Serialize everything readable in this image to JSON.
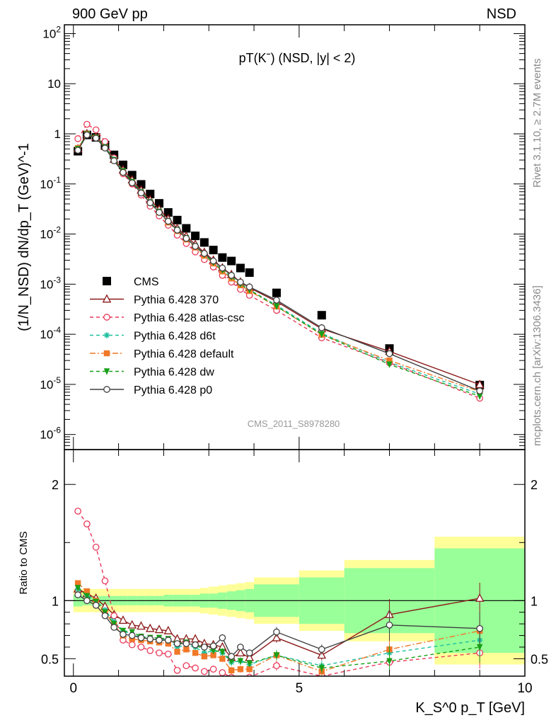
{
  "header": {
    "left": "900 GeV pp",
    "right": "NSD",
    "side_top": "Rivet 3.1.10, ≥ 2.7M events",
    "side_bottom": "mcplots.cern.ch [arXiv:1306.3436]"
  },
  "chart_data": [
    {
      "type": "line",
      "title": "pT(Kˉ) (NSD, |y| < 2)",
      "watermark": "CMS_2011_S8978280",
      "ylabel": "(1/N_NSD) dN/dp_T (GeV)^-1",
      "yscale": "log",
      "ylim": [
        5e-07,
        150
      ],
      "xlim": [
        -0.2,
        10
      ],
      "ytick_labels": [
        "10^-6",
        "10^-5",
        "10^-4",
        "10^-3",
        "10^-2",
        "10^-1",
        "1",
        "10",
        "10^2"
      ],
      "legend_position": "middle-left",
      "x": [
        0.1,
        0.3,
        0.5,
        0.7,
        0.9,
        1.1,
        1.3,
        1.5,
        1.7,
        1.9,
        2.1,
        2.3,
        2.5,
        2.7,
        2.9,
        3.1,
        3.3,
        3.5,
        3.7,
        3.9,
        4.5,
        5.5,
        7.0,
        9.0
      ],
      "series": [
        {
          "name": "CMS",
          "color": "#000000",
          "marker": "square",
          "values": [
            0.45,
            0.95,
            0.85,
            0.6,
            0.38,
            0.24,
            0.15,
            0.098,
            0.063,
            0.041,
            0.027,
            0.019,
            0.013,
            0.0092,
            0.0068,
            0.0048,
            0.0034,
            0.0029,
            0.0021,
            0.0017,
            0.00067,
            0.00024,
            5.2e-05,
            9.7e-06
          ]
        },
        {
          "name": "Pythia 6.428 370",
          "color": "#8b1a1a",
          "marker": "open-triangle",
          "dash": "solid",
          "values": [
            0.5,
            1.0,
            0.86,
            0.56,
            0.31,
            0.19,
            0.12,
            0.075,
            0.048,
            0.031,
            0.02,
            0.013,
            0.009,
            0.0062,
            0.0043,
            0.003,
            0.0021,
            0.00155,
            0.0011,
            0.00085,
            0.00045,
            0.000128,
            4.55e-05,
            9.9e-06
          ]
        },
        {
          "name": "Pythia 6.428 atlas-csc",
          "color": "#e8395a",
          "marker": "open-circle",
          "dash": "dashed",
          "values": [
            0.8,
            1.55,
            1.2,
            0.7,
            0.33,
            0.16,
            0.1,
            0.06,
            0.036,
            0.023,
            0.015,
            0.0095,
            0.0065,
            0.0044,
            0.0031,
            0.0022,
            0.0015,
            0.0011,
            0.00079,
            0.0006,
            0.0003,
            8.5e-05,
            2.7e-05,
            5.3e-06
          ]
        },
        {
          "name": "Pythia 6.428 d6t",
          "color": "#20c0a0",
          "marker": "star",
          "dash": "dashed",
          "values": [
            0.5,
            1.0,
            0.85,
            0.55,
            0.31,
            0.18,
            0.11,
            0.07,
            0.044,
            0.028,
            0.018,
            0.012,
            0.0082,
            0.0057,
            0.0039,
            0.0027,
            0.0019,
            0.0014,
            0.001,
            0.00077,
            0.00038,
            0.000105,
            2.75e-05,
            6.4e-06
          ]
        },
        {
          "name": "Pythia 6.428 default",
          "color": "#f07828",
          "marker": "square",
          "dash": "dashdot",
          "values": [
            0.52,
            1.0,
            0.85,
            0.54,
            0.3,
            0.17,
            0.105,
            0.066,
            0.042,
            0.027,
            0.017,
            0.0115,
            0.0078,
            0.0054,
            0.0037,
            0.0026,
            0.0018,
            0.0013,
            0.00095,
            0.00073,
            0.00036,
            9.8e-05,
            3e-05,
            7.2e-06
          ]
        },
        {
          "name": "Pythia 6.428 dw",
          "color": "#18a018",
          "marker": "triangle-down",
          "dash": "dashed",
          "values": [
            0.5,
            0.98,
            0.84,
            0.54,
            0.3,
            0.18,
            0.11,
            0.068,
            0.043,
            0.028,
            0.018,
            0.0122,
            0.0083,
            0.0057,
            0.0039,
            0.0027,
            0.0019,
            0.0014,
            0.001,
            0.00077,
            0.00036,
            0.0001,
            2.5e-05,
            5.8e-06
          ]
        },
        {
          "name": "Pythia 6.428 p0",
          "color": "#404040",
          "marker": "open-circle",
          "dash": "solid",
          "values": [
            0.47,
            0.95,
            0.82,
            0.52,
            0.29,
            0.17,
            0.105,
            0.066,
            0.042,
            0.027,
            0.018,
            0.012,
            0.0082,
            0.0057,
            0.0041,
            0.0029,
            0.0021,
            0.0015,
            0.0011,
            0.00088,
            0.00048,
            0.000135,
            4.1e-05,
            7.4e-06
          ]
        }
      ]
    },
    {
      "type": "line",
      "ylabel": "Ratio to CMS",
      "xlabel": "K_S^0 p_T [GeV]",
      "ylim": [
        0.35,
        2.3
      ],
      "xlim": [
        -0.2,
        10
      ],
      "xtick_labels": [
        "0",
        "5",
        "10"
      ],
      "ytick_labels": [
        "0.5",
        "1",
        "2"
      ],
      "band_edges": [
        0,
        0.2,
        0.4,
        0.6,
        0.8,
        1.0,
        1.2,
        1.4,
        1.6,
        1.8,
        2.0,
        2.2,
        2.4,
        2.6,
        2.8,
        3.0,
        3.2,
        3.4,
        3.6,
        3.8,
        4.0,
        5.0,
        6.0,
        8.0,
        10.0
      ],
      "band_inner": [
        0.05,
        0.04,
        0.04,
        0.04,
        0.04,
        0.04,
        0.04,
        0.04,
        0.04,
        0.04,
        0.05,
        0.05,
        0.05,
        0.05,
        0.06,
        0.06,
        0.07,
        0.08,
        0.09,
        0.1,
        0.14,
        0.2,
        0.28,
        0.45
      ],
      "band_outer": [
        0.1,
        0.1,
        0.1,
        0.1,
        0.1,
        0.1,
        0.1,
        0.1,
        0.1,
        0.1,
        0.1,
        0.1,
        0.1,
        0.1,
        0.11,
        0.12,
        0.13,
        0.14,
        0.15,
        0.16,
        0.2,
        0.26,
        0.35,
        0.55
      ],
      "series": [
        {
          "name": "Pythia 6.428 370",
          "values": [
            1.1,
            1.06,
            1.02,
            0.95,
            0.88,
            0.83,
            0.79,
            0.78,
            0.76,
            0.75,
            0.74,
            0.67,
            0.67,
            0.67,
            0.63,
            0.62,
            0.6,
            0.51,
            0.55,
            0.51,
            0.68,
            0.53,
            0.88,
            1.02
          ]
        },
        {
          "name": "Pythia 6.428 atlas-csc",
          "values": [
            1.77,
            1.66,
            1.46,
            1.17,
            0.87,
            0.66,
            0.62,
            0.6,
            0.57,
            0.55,
            0.54,
            0.4,
            0.44,
            0.42,
            0.39,
            0.41,
            0.38,
            0.34,
            0.32,
            0.34,
            0.44,
            0.35,
            0.47,
            0.55
          ]
        },
        {
          "name": "Pythia 6.428 d6t",
          "values": [
            1.1,
            1.05,
            1.0,
            0.92,
            0.82,
            0.74,
            0.71,
            0.69,
            0.68,
            0.67,
            0.66,
            0.6,
            0.62,
            0.6,
            0.55,
            0.57,
            0.55,
            0.47,
            0.48,
            0.45,
            0.53,
            0.44,
            0.55,
            0.66
          ]
        },
        {
          "name": "Pythia 6.428 default",
          "values": [
            1.15,
            1.08,
            1.0,
            0.9,
            0.79,
            0.7,
            0.67,
            0.66,
            0.65,
            0.64,
            0.63,
            0.56,
            0.58,
            0.55,
            0.52,
            0.53,
            0.5,
            0.4,
            0.41,
            0.41,
            0.53,
            0.39,
            0.58,
            0.74
          ]
        },
        {
          "name": "Pythia 6.428 dw",
          "values": [
            1.11,
            1.04,
            0.99,
            0.9,
            0.8,
            0.74,
            0.73,
            0.69,
            0.68,
            0.68,
            0.67,
            0.63,
            0.64,
            0.61,
            0.59,
            0.57,
            0.56,
            0.48,
            0.48,
            0.46,
            0.53,
            0.42,
            0.48,
            0.6
          ]
        },
        {
          "name": "Pythia 6.428 p0",
          "values": [
            1.05,
            1.0,
            0.96,
            0.87,
            0.77,
            0.71,
            0.7,
            0.68,
            0.67,
            0.66,
            0.66,
            0.63,
            0.63,
            0.62,
            0.6,
            0.61,
            0.68,
            0.52,
            0.6,
            0.55,
            0.73,
            0.58,
            0.79,
            0.76
          ]
        }
      ]
    }
  ]
}
